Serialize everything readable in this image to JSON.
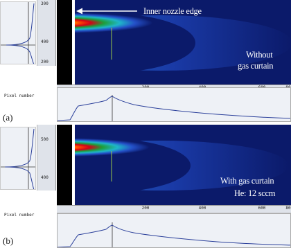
{
  "panels": [
    {
      "id": "a",
      "label": "(a)",
      "y_ticks_left": [
        "300",
        "400",
        "200"
      ],
      "x_ticks": [
        "200",
        "400",
        "600",
        "80"
      ],
      "pixel_label": "Pixel number",
      "annotation_top": "Inner nozzle edge",
      "caption_lines": [
        "Without",
        "gas curtain"
      ]
    },
    {
      "id": "b",
      "label": "(b)",
      "y_ticks_left": [
        "500",
        "400"
      ],
      "x_ticks": [
        "200",
        "400",
        "600",
        "80"
      ],
      "pixel_label": "Pixel number",
      "caption_lines": [
        "With gas curtain",
        "He: 12 sccm"
      ]
    }
  ],
  "colors": {
    "image_background": "#0b1a6a",
    "jet_core": "#fff6c0",
    "plot_background": "#eef1f6",
    "plot_line": "#2a3f9a"
  }
}
